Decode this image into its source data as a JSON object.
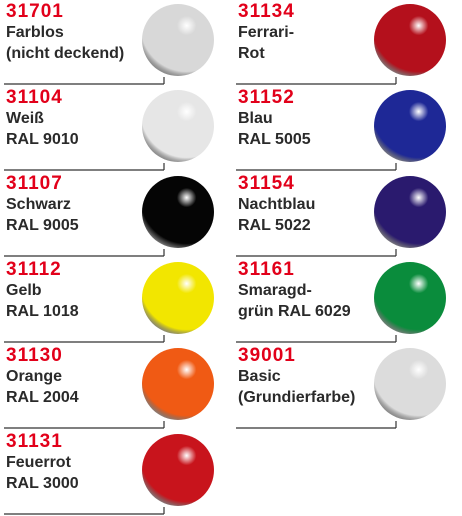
{
  "columns": [
    {
      "items": [
        {
          "code": "31701",
          "lines": [
            "Farblos",
            "(nicht deckend)"
          ],
          "color": "#d8d8d8"
        },
        {
          "code": "31104",
          "lines": [
            "Weiß",
            "RAL 9010"
          ],
          "color": "#e6e6e6"
        },
        {
          "code": "31107",
          "lines": [
            "Schwarz",
            "RAL 9005"
          ],
          "color": "#050505"
        },
        {
          "code": "31112",
          "lines": [
            "Gelb",
            "RAL 1018"
          ],
          "color": "#f2e600"
        },
        {
          "code": "31130",
          "lines": [
            "Orange",
            "RAL 2004"
          ],
          "color": "#f05a14"
        },
        {
          "code": "31131",
          "lines": [
            "Feuerrot",
            "RAL 3000"
          ],
          "color": "#c8141c"
        }
      ]
    },
    {
      "items": [
        {
          "code": "31134",
          "lines": [
            "Ferrari-",
            "Rot"
          ],
          "color": "#b4101c"
        },
        {
          "code": "31152",
          "lines": [
            "Blau",
            "RAL 5005"
          ],
          "color": "#1e2896"
        },
        {
          "code": "31154",
          "lines": [
            "Nachtblau",
            "RAL 5022"
          ],
          "color": "#2a1a6e"
        },
        {
          "code": "31161",
          "lines": [
            "Smaragd-",
            "grün RAL 6029"
          ],
          "color": "#0a8c3c"
        },
        {
          "code": "39001",
          "lines": [
            "Basic",
            "(Grundierfarbe)"
          ],
          "color": "#dcdcdc"
        }
      ]
    }
  ]
}
